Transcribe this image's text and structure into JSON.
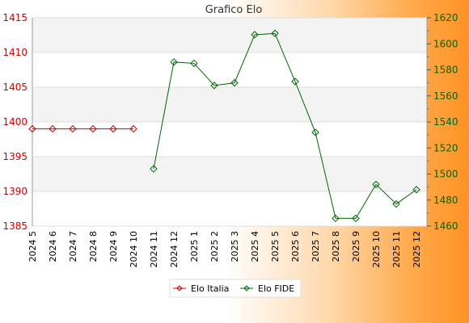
{
  "chart_data": {
    "type": "line",
    "title": "Grafico Elo",
    "categories": [
      "2024 5",
      "2024 6",
      "2024 7",
      "2024 8",
      "2024 9",
      "2024 10",
      "2024 11",
      "2024 12",
      "2025 1",
      "2025 2",
      "2025 3",
      "2025 4",
      "2025 5",
      "2025 6",
      "2025 7",
      "2025 8",
      "2025 9",
      "2025 10",
      "2025 11",
      "2025 12"
    ],
    "y_left": {
      "range": [
        1385,
        1415
      ],
      "ticks": [
        1385,
        1390,
        1395,
        1400,
        1405,
        1410,
        1415
      ],
      "color": "#cc0000"
    },
    "y_right": {
      "range": [
        1460,
        1620
      ],
      "ticks": [
        1460,
        1480,
        1500,
        1520,
        1540,
        1560,
        1580,
        1600,
        1620
      ],
      "color": "#006600"
    },
    "grid": true,
    "legend_placement": "bottom",
    "series": [
      {
        "name": "Elo Italia",
        "axis": "left",
        "color": "#cc0000",
        "values": [
          1399,
          1399,
          1399,
          1399,
          1399,
          1399,
          null,
          null,
          null,
          null,
          null,
          null,
          null,
          null,
          null,
          null,
          null,
          null,
          null,
          null
        ]
      },
      {
        "name": "Elo FIDE",
        "axis": "right",
        "color": "#006600",
        "values": [
          null,
          null,
          null,
          null,
          null,
          null,
          1504,
          1586,
          1585,
          1568,
          1570,
          1607,
          1608,
          1571,
          1532,
          1466,
          1466,
          1492,
          1477,
          1488
        ]
      }
    ]
  }
}
